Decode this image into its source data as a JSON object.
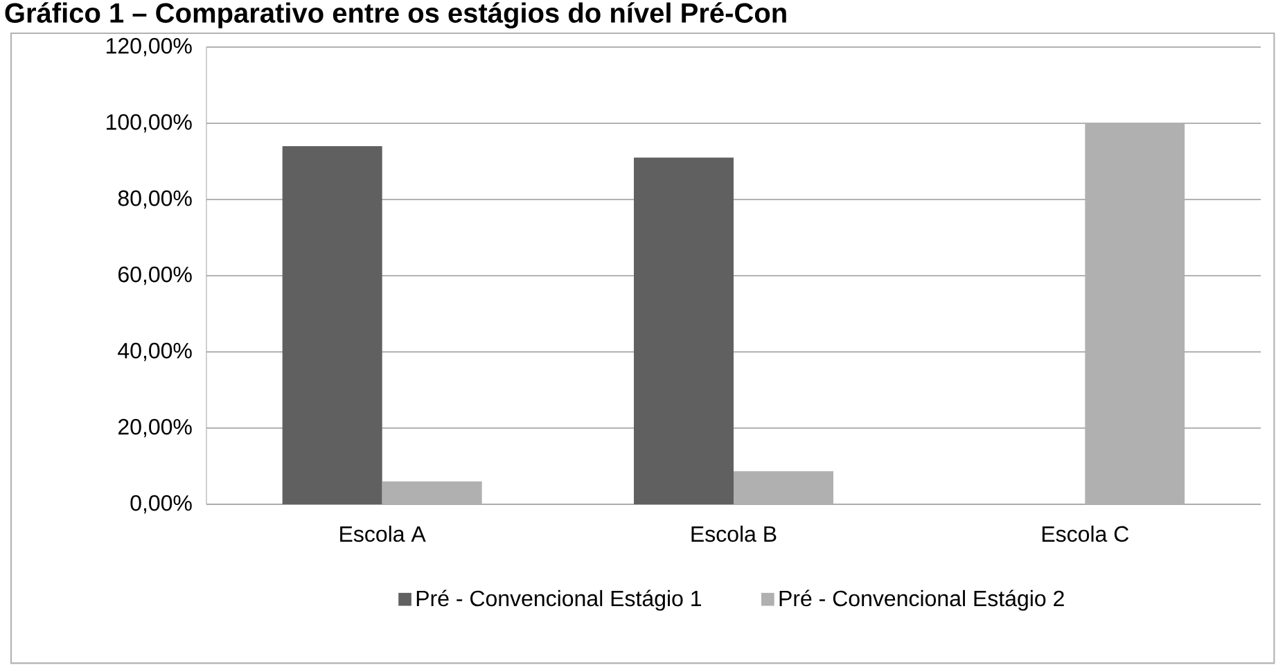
{
  "chart_data": {
    "type": "bar",
    "title": "Gráfico 1 – Comparativo entre os estágios do nível Pré-Con",
    "categories": [
      "Escola A",
      "Escola B",
      "Escola C"
    ],
    "series": [
      {
        "name": "Pré - Convencional Estágio 1",
        "color": "#606060",
        "values": [
          94,
          91,
          0
        ]
      },
      {
        "name": "Pré - Convencional Estágio 2",
        "color": "#b0b0b0",
        "values": [
          6,
          8.7,
          100
        ]
      }
    ],
    "ylim": [
      0,
      120
    ],
    "yticks": [
      {
        "value": 0,
        "label": "0,00%"
      },
      {
        "value": 20,
        "label": "20,00%"
      },
      {
        "value": 40,
        "label": "40,00%"
      },
      {
        "value": 60,
        "label": "60,00%"
      },
      {
        "value": 80,
        "label": "80,00%"
      },
      {
        "value": 100,
        "label": "100,00%"
      },
      {
        "value": 120,
        "label": "120,00%"
      }
    ],
    "grid": "y",
    "legend": "bottom"
  }
}
